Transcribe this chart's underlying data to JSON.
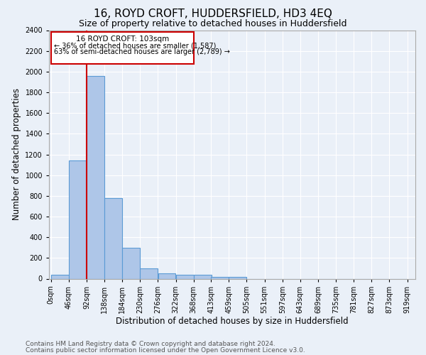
{
  "title": "16, ROYD CROFT, HUDDERSFIELD, HD3 4EQ",
  "subtitle": "Size of property relative to detached houses in Huddersfield",
  "xlabel": "Distribution of detached houses by size in Huddersfield",
  "ylabel": "Number of detached properties",
  "footer_line1": "Contains HM Land Registry data © Crown copyright and database right 2024.",
  "footer_line2": "Contains public sector information licensed under the Open Government Licence v3.0.",
  "bar_values": [
    35,
    1140,
    1960,
    775,
    300,
    100,
    50,
    40,
    35,
    20,
    15,
    0,
    0,
    0,
    0,
    0,
    0,
    0,
    0,
    0
  ],
  "bin_edges": [
    0,
    46,
    92,
    138,
    184,
    230,
    276,
    322,
    368,
    413,
    459,
    505,
    551,
    597,
    643,
    689,
    735,
    781,
    827,
    873,
    919
  ],
  "x_tick_labels": [
    "0sqm",
    "46sqm",
    "92sqm",
    "138sqm",
    "184sqm",
    "230sqm",
    "276sqm",
    "322sqm",
    "368sqm",
    "413sqm",
    "459sqm",
    "505sqm",
    "551sqm",
    "597sqm",
    "643sqm",
    "689sqm",
    "735sqm",
    "781sqm",
    "827sqm",
    "873sqm",
    "919sqm"
  ],
  "ylim": [
    0,
    2400
  ],
  "yticks": [
    0,
    200,
    400,
    600,
    800,
    1000,
    1200,
    1400,
    1600,
    1800,
    2000,
    2200,
    2400
  ],
  "bar_color": "#aec6e8",
  "bar_edge_color": "#5b9bd5",
  "bar_edge_width": 0.8,
  "red_line_x": 92,
  "annotation_text_line1": "16 ROYD CROFT: 103sqm",
  "annotation_text_line2": "← 36% of detached houses are smaller (1,587)",
  "annotation_text_line3": "63% of semi-detached houses are larger (2,789) →",
  "annotation_box_color": "#cc0000",
  "bg_color": "#eaf0f8",
  "plot_bg_color": "#eaf0f8",
  "title_fontsize": 11,
  "subtitle_fontsize": 9,
  "axis_label_fontsize": 8.5,
  "tick_fontsize": 7,
  "footer_fontsize": 6.5
}
